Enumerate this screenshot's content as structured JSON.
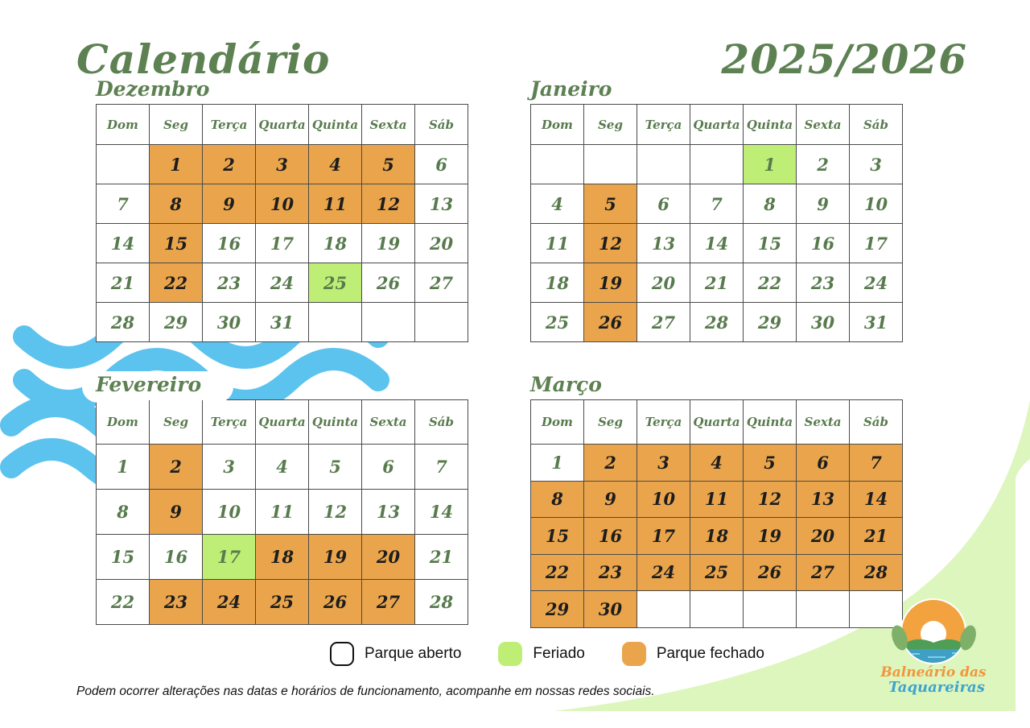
{
  "page": {
    "title": "Calendário",
    "years": "2025/2026",
    "footer_note": "Podem ocorrer alterações nas datas e horários de funcionamento, acompanhe em nossas redes sociais."
  },
  "logo": {
    "line1": "Balneário das",
    "line2": "Taquareiras"
  },
  "colors": {
    "title_green": "#5d8152",
    "day_text_green": "#587b4e",
    "closed_orange": "#eaa54c",
    "holiday_green": "#bfee77",
    "wave_blue": "#5cc3ee",
    "corner_light_green": "#ddf6bd",
    "table_border": "#4a4a4a"
  },
  "legend": [
    {
      "label": "Parque aberto",
      "state": "open"
    },
    {
      "label": "Feriado",
      "state": "holiday"
    },
    {
      "label": "Parque fechado",
      "state": "closed"
    }
  ],
  "weekday_headers": [
    "Dom",
    "Seg",
    "Terça",
    "Quarta",
    "Quinta",
    "Sexta",
    "Sáb"
  ],
  "months": [
    {
      "name": "Dezembro",
      "weeks": [
        [
          {
            "d": "",
            "s": "empty"
          },
          {
            "d": "1",
            "s": "closed"
          },
          {
            "d": "2",
            "s": "closed"
          },
          {
            "d": "3",
            "s": "closed"
          },
          {
            "d": "4",
            "s": "closed"
          },
          {
            "d": "5",
            "s": "closed"
          },
          {
            "d": "6",
            "s": "open"
          }
        ],
        [
          {
            "d": "7",
            "s": "open"
          },
          {
            "d": "8",
            "s": "closed"
          },
          {
            "d": "9",
            "s": "closed"
          },
          {
            "d": "10",
            "s": "closed"
          },
          {
            "d": "11",
            "s": "closed"
          },
          {
            "d": "12",
            "s": "closed"
          },
          {
            "d": "13",
            "s": "open"
          }
        ],
        [
          {
            "d": "14",
            "s": "open"
          },
          {
            "d": "15",
            "s": "closed"
          },
          {
            "d": "16",
            "s": "open"
          },
          {
            "d": "17",
            "s": "open"
          },
          {
            "d": "18",
            "s": "open"
          },
          {
            "d": "19",
            "s": "open"
          },
          {
            "d": "20",
            "s": "open"
          }
        ],
        [
          {
            "d": "21",
            "s": "open"
          },
          {
            "d": "22",
            "s": "closed"
          },
          {
            "d": "23",
            "s": "open"
          },
          {
            "d": "24",
            "s": "open"
          },
          {
            "d": "25",
            "s": "holiday"
          },
          {
            "d": "26",
            "s": "open"
          },
          {
            "d": "27",
            "s": "open"
          }
        ],
        [
          {
            "d": "28",
            "s": "open"
          },
          {
            "d": "29",
            "s": "open"
          },
          {
            "d": "30",
            "s": "open"
          },
          {
            "d": "31",
            "s": "open"
          },
          {
            "d": "",
            "s": "empty"
          },
          {
            "d": "",
            "s": "empty"
          },
          {
            "d": "",
            "s": "empty"
          }
        ]
      ]
    },
    {
      "name": "Janeiro",
      "weeks": [
        [
          {
            "d": "",
            "s": "empty"
          },
          {
            "d": "",
            "s": "empty"
          },
          {
            "d": "",
            "s": "empty"
          },
          {
            "d": "",
            "s": "empty"
          },
          {
            "d": "1",
            "s": "holiday"
          },
          {
            "d": "2",
            "s": "open"
          },
          {
            "d": "3",
            "s": "open"
          }
        ],
        [
          {
            "d": "4",
            "s": "open"
          },
          {
            "d": "5",
            "s": "closed"
          },
          {
            "d": "6",
            "s": "open"
          },
          {
            "d": "7",
            "s": "open"
          },
          {
            "d": "8",
            "s": "open"
          },
          {
            "d": "9",
            "s": "open"
          },
          {
            "d": "10",
            "s": "open"
          }
        ],
        [
          {
            "d": "11",
            "s": "open"
          },
          {
            "d": "12",
            "s": "closed"
          },
          {
            "d": "13",
            "s": "open"
          },
          {
            "d": "14",
            "s": "open"
          },
          {
            "d": "15",
            "s": "open"
          },
          {
            "d": "16",
            "s": "open"
          },
          {
            "d": "17",
            "s": "open"
          }
        ],
        [
          {
            "d": "18",
            "s": "open"
          },
          {
            "d": "19",
            "s": "closed"
          },
          {
            "d": "20",
            "s": "open"
          },
          {
            "d": "21",
            "s": "open"
          },
          {
            "d": "22",
            "s": "open"
          },
          {
            "d": "23",
            "s": "open"
          },
          {
            "d": "24",
            "s": "open"
          }
        ],
        [
          {
            "d": "25",
            "s": "open"
          },
          {
            "d": "26",
            "s": "closed"
          },
          {
            "d": "27",
            "s": "open"
          },
          {
            "d": "28",
            "s": "open"
          },
          {
            "d": "29",
            "s": "open"
          },
          {
            "d": "30",
            "s": "open"
          },
          {
            "d": "31",
            "s": "open"
          }
        ]
      ]
    },
    {
      "name": "Fevereiro",
      "weeks": [
        [
          {
            "d": "1",
            "s": "open"
          },
          {
            "d": "2",
            "s": "closed"
          },
          {
            "d": "3",
            "s": "open"
          },
          {
            "d": "4",
            "s": "open"
          },
          {
            "d": "5",
            "s": "open"
          },
          {
            "d": "6",
            "s": "open"
          },
          {
            "d": "7",
            "s": "open"
          }
        ],
        [
          {
            "d": "8",
            "s": "open"
          },
          {
            "d": "9",
            "s": "closed"
          },
          {
            "d": "10",
            "s": "open"
          },
          {
            "d": "11",
            "s": "open"
          },
          {
            "d": "12",
            "s": "open"
          },
          {
            "d": "13",
            "s": "open"
          },
          {
            "d": "14",
            "s": "open"
          }
        ],
        [
          {
            "d": "15",
            "s": "open"
          },
          {
            "d": "16",
            "s": "open"
          },
          {
            "d": "17",
            "s": "holiday"
          },
          {
            "d": "18",
            "s": "closed"
          },
          {
            "d": "19",
            "s": "closed"
          },
          {
            "d": "20",
            "s": "closed"
          },
          {
            "d": "21",
            "s": "open"
          }
        ],
        [
          {
            "d": "22",
            "s": "open"
          },
          {
            "d": "23",
            "s": "closed"
          },
          {
            "d": "24",
            "s": "closed"
          },
          {
            "d": "25",
            "s": "closed"
          },
          {
            "d": "26",
            "s": "closed"
          },
          {
            "d": "27",
            "s": "closed"
          },
          {
            "d": "28",
            "s": "open"
          }
        ]
      ]
    },
    {
      "name": "Março",
      "weeks": [
        [
          {
            "d": "1",
            "s": "open"
          },
          {
            "d": "2",
            "s": "closed"
          },
          {
            "d": "3",
            "s": "closed"
          },
          {
            "d": "4",
            "s": "closed"
          },
          {
            "d": "5",
            "s": "closed"
          },
          {
            "d": "6",
            "s": "closed"
          },
          {
            "d": "7",
            "s": "closed"
          }
        ],
        [
          {
            "d": "8",
            "s": "closed"
          },
          {
            "d": "9",
            "s": "closed"
          },
          {
            "d": "10",
            "s": "closed"
          },
          {
            "d": "11",
            "s": "closed"
          },
          {
            "d": "12",
            "s": "closed"
          },
          {
            "d": "13",
            "s": "closed"
          },
          {
            "d": "14",
            "s": "closed"
          }
        ],
        [
          {
            "d": "15",
            "s": "closed"
          },
          {
            "d": "16",
            "s": "closed"
          },
          {
            "d": "17",
            "s": "closed"
          },
          {
            "d": "18",
            "s": "closed"
          },
          {
            "d": "19",
            "s": "closed"
          },
          {
            "d": "20",
            "s": "closed"
          },
          {
            "d": "21",
            "s": "closed"
          }
        ],
        [
          {
            "d": "22",
            "s": "closed"
          },
          {
            "d": "23",
            "s": "closed"
          },
          {
            "d": "24",
            "s": "closed"
          },
          {
            "d": "25",
            "s": "closed"
          },
          {
            "d": "26",
            "s": "closed"
          },
          {
            "d": "27",
            "s": "closed"
          },
          {
            "d": "28",
            "s": "closed"
          }
        ],
        [
          {
            "d": "29",
            "s": "closed"
          },
          {
            "d": "30",
            "s": "closed"
          },
          {
            "d": "",
            "s": "empty"
          },
          {
            "d": "",
            "s": "empty"
          },
          {
            "d": "",
            "s": "empty"
          },
          {
            "d": "",
            "s": "empty"
          },
          {
            "d": "",
            "s": "empty"
          }
        ]
      ]
    }
  ]
}
